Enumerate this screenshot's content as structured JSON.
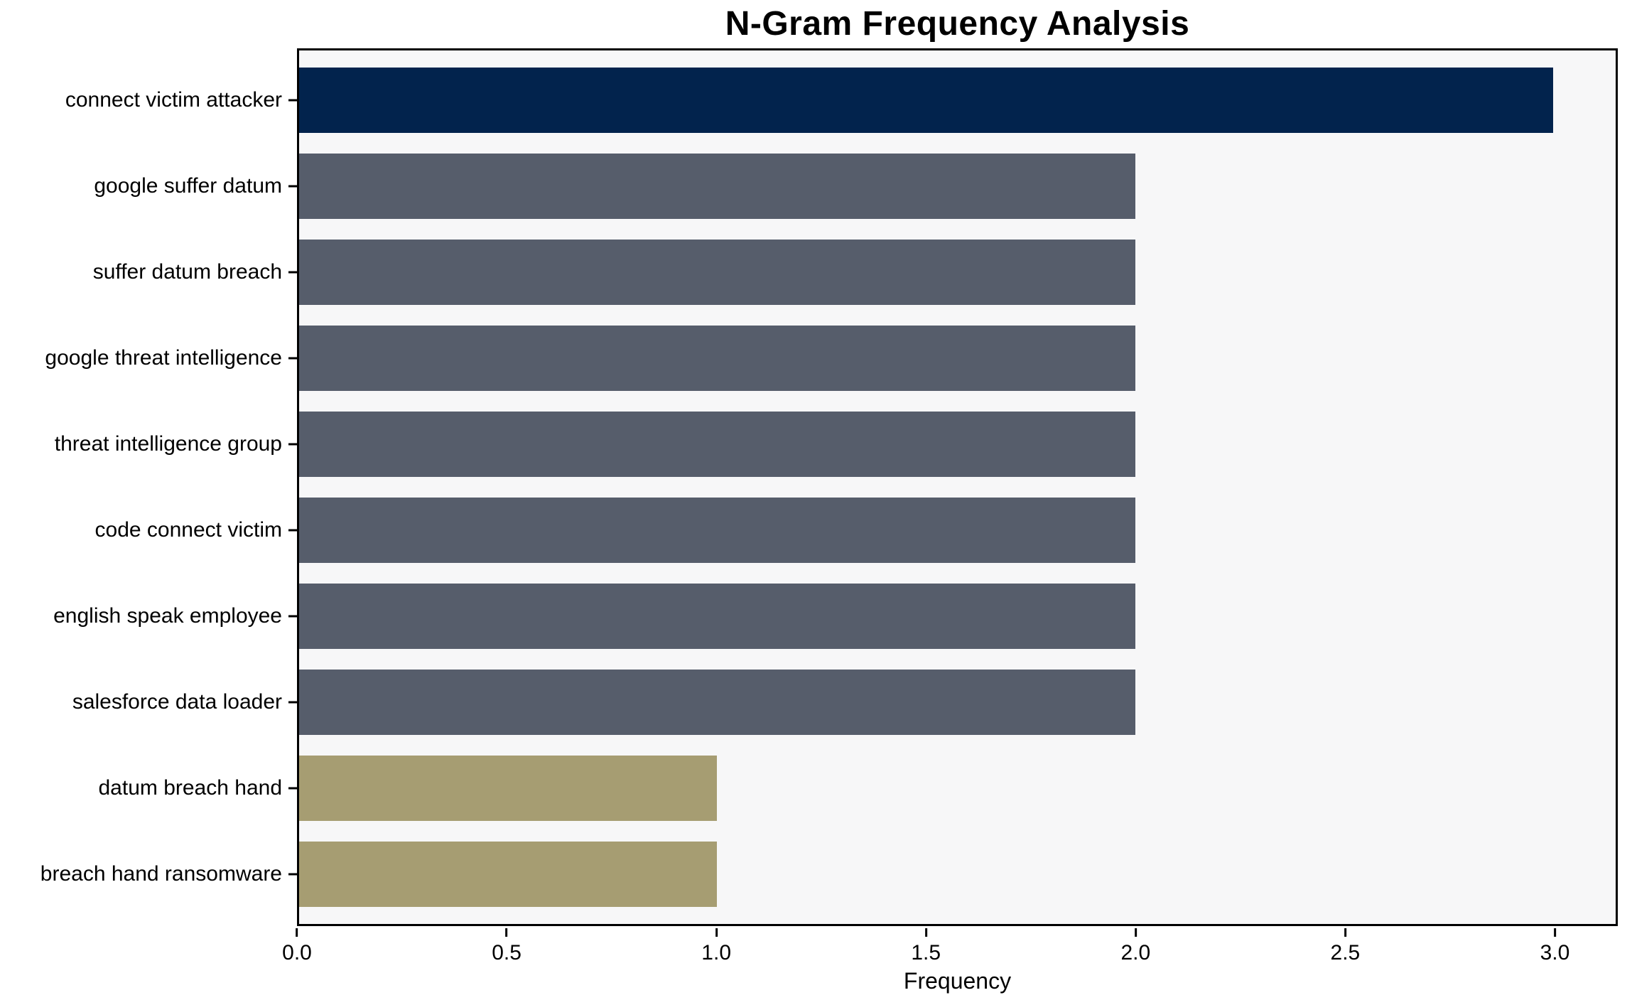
{
  "chart_data": {
    "type": "bar",
    "orientation": "horizontal",
    "title": "N-Gram Frequency Analysis",
    "xlabel": "Frequency",
    "ylabel": "",
    "categories": [
      "connect victim attacker",
      "google suffer datum",
      "suffer datum breach",
      "google threat intelligence",
      "threat intelligence group",
      "code connect victim",
      "english speak employee",
      "salesforce data loader",
      "datum breach hand",
      "breach hand ransomware"
    ],
    "values": [
      3,
      2,
      2,
      2,
      2,
      2,
      2,
      2,
      1,
      1
    ],
    "bar_colors": [
      "#02234d",
      "#565d6b",
      "#565d6b",
      "#565d6b",
      "#565d6b",
      "#565d6b",
      "#565d6b",
      "#565d6b",
      "#a69d72",
      "#a69d72"
    ],
    "xlim": [
      0,
      3.15
    ],
    "x_ticks": [
      {
        "value": 0.0,
        "label": "0.0"
      },
      {
        "value": 0.5,
        "label": "0.5"
      },
      {
        "value": 1.0,
        "label": "1.0"
      },
      {
        "value": 1.5,
        "label": "1.5"
      },
      {
        "value": 2.0,
        "label": "2.0"
      },
      {
        "value": 2.5,
        "label": "2.5"
      },
      {
        "value": 3.0,
        "label": "3.0"
      }
    ],
    "grid": false,
    "legend_position": "none",
    "colors": {
      "highlight_bar": "#02234d",
      "mid_bar": "#565d6b",
      "low_bar": "#a69d72",
      "plot_background": "#f7f7f8",
      "figure_background": "#ffffff",
      "spine": "#000000",
      "text": "#000000"
    }
  }
}
